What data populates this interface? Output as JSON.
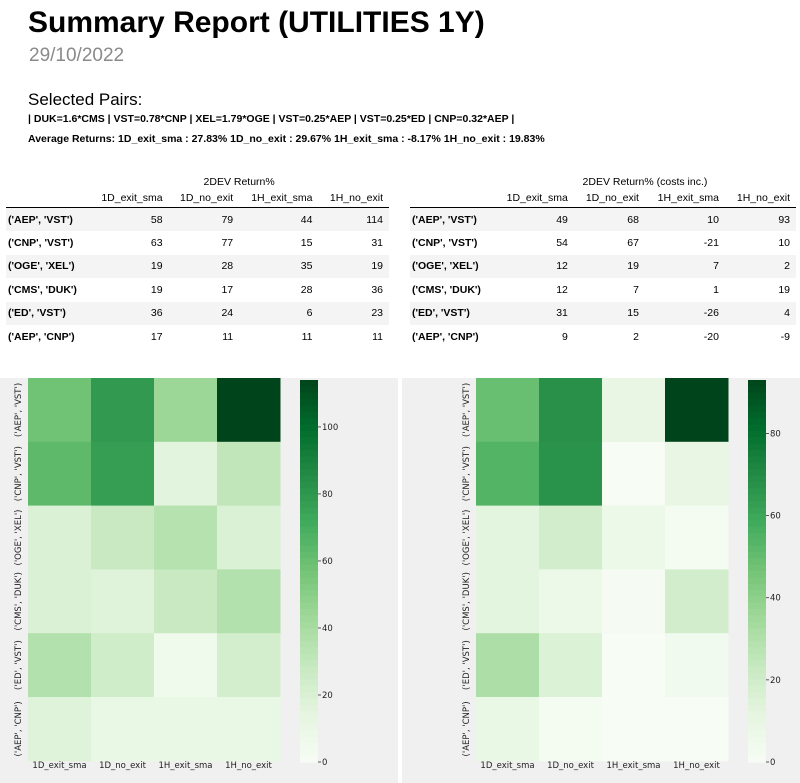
{
  "report": {
    "title": "Summary Report (UTILITIES 1Y)",
    "date": "29/10/2022",
    "selected_pairs_heading": "Selected Pairs:",
    "pairs_line": "| DUK=1.6*CMS | VST=0.78*CNP | XEL=1.79*OGE | VST=0.25*AEP | VST=0.25*ED | CNP=0.32*AEP |",
    "avg_returns_line": "Average Returns: 1D_exit_sma : 27.83%  1D_no_exit : 29.67%  1H_exit_sma : -8.17%  1H_no_exit : 19.83%"
  },
  "tables": [
    {
      "caption": "2DEV Return%",
      "columns": [
        "1D_exit_sma",
        "1D_no_exit",
        "1H_exit_sma",
        "1H_no_exit"
      ],
      "rows": [
        {
          "label": "('AEP', 'VST')",
          "values": [
            "58",
            "79",
            "44",
            "114"
          ]
        },
        {
          "label": "('CNP', 'VST')",
          "values": [
            "63",
            "77",
            "15",
            "31"
          ]
        },
        {
          "label": "('OGE', 'XEL')",
          "values": [
            "19",
            "28",
            "35",
            "19"
          ]
        },
        {
          "label": "('CMS', 'DUK')",
          "values": [
            "19",
            "17",
            "28",
            "36"
          ]
        },
        {
          "label": "('ED', 'VST')",
          "values": [
            "36",
            "24",
            "6",
            "23"
          ]
        },
        {
          "label": "('AEP', 'CNP')",
          "values": [
            "17",
            "11",
            "11",
            "11"
          ]
        }
      ]
    },
    {
      "caption": "2DEV Return% (costs inc.)",
      "columns": [
        "1D_exit_sma",
        "1D_no_exit",
        "1H_exit_sma",
        "1H_no_exit"
      ],
      "rows": [
        {
          "label": "('AEP', 'VST')",
          "values": [
            "49",
            "68",
            "10",
            "93"
          ]
        },
        {
          "label": "('CNP', 'VST')",
          "values": [
            "54",
            "67",
            "-21",
            "10"
          ]
        },
        {
          "label": "('OGE', 'XEL')",
          "values": [
            "12",
            "19",
            "7",
            "2"
          ]
        },
        {
          "label": "('CMS', 'DUK')",
          "values": [
            "12",
            "7",
            "1",
            "19"
          ]
        },
        {
          "label": "('ED', 'VST')",
          "values": [
            "31",
            "15",
            "-26",
            "4"
          ]
        },
        {
          "label": "('AEP', 'CNP')",
          "values": [
            "9",
            "2",
            "-20",
            "-9"
          ]
        }
      ]
    }
  ],
  "chart_data": [
    {
      "type": "heatmap",
      "title": "",
      "x": [
        "1D_exit_sma",
        "1D_no_exit",
        "1H_exit_sma",
        "1H_no_exit"
      ],
      "y": [
        "('AEP', 'VST')",
        "('CNP', 'VST')",
        "('OGE', 'XEL')",
        "('CMS', 'DUK')",
        "('ED', 'VST')",
        "('AEP', 'CNP')"
      ],
      "values": [
        [
          58,
          79,
          44,
          114
        ],
        [
          63,
          77,
          15,
          31
        ],
        [
          19,
          28,
          35,
          19
        ],
        [
          19,
          17,
          28,
          36
        ],
        [
          36,
          24,
          6,
          23
        ],
        [
          17,
          11,
          11,
          11
        ]
      ],
      "colorbar_range": [
        0,
        114
      ],
      "colorbar_ticks": [
        0,
        20,
        40,
        60,
        80,
        100
      ],
      "colormap": "Greens"
    },
    {
      "type": "heatmap",
      "title": "",
      "x": [
        "1D_exit_sma",
        "1D_no_exit",
        "1H_exit_sma",
        "1H_no_exit"
      ],
      "y": [
        "('AEP', 'VST')",
        "('CNP', 'VST')",
        "('OGE', 'XEL')",
        "('CMS', 'DUK')",
        "('ED', 'VST')",
        "('AEP', 'CNP')"
      ],
      "values": [
        [
          49,
          68,
          10,
          93
        ],
        [
          54,
          67,
          -21,
          10
        ],
        [
          12,
          19,
          7,
          2
        ],
        [
          12,
          7,
          1,
          19
        ],
        [
          31,
          15,
          -26,
          4
        ],
        [
          9,
          2,
          -20,
          -9
        ]
      ],
      "colorbar_range": [
        0,
        93
      ],
      "colorbar_ticks": [
        0,
        20,
        40,
        60,
        80
      ],
      "colormap": "Greens"
    }
  ]
}
